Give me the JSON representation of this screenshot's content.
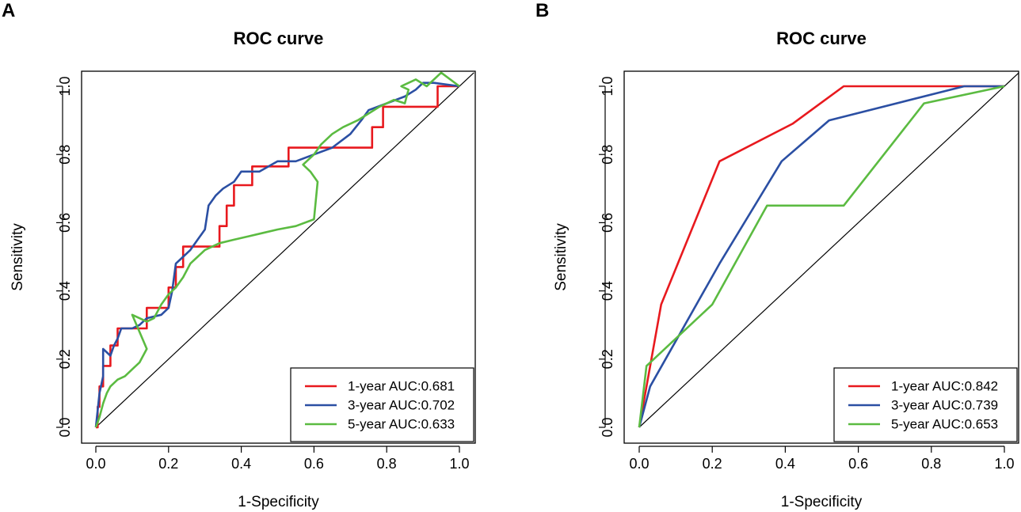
{
  "panels": [
    {
      "letter": "A"
    },
    {
      "letter": "B"
    }
  ],
  "chart_data": [
    {
      "type": "line",
      "title": "ROC curve",
      "xlabel": "1-Specificity",
      "ylabel": "Sensitivity",
      "xlim": [
        0,
        1
      ],
      "ylim": [
        0,
        1
      ],
      "xticks": [
        "0.0",
        "0.2",
        "0.4",
        "0.6",
        "0.8",
        "1.0"
      ],
      "yticks": [
        "0.0",
        "0.2",
        "0.4",
        "0.6",
        "0.8",
        "1.0"
      ],
      "legend_position": "bottom-right",
      "diagonal": true,
      "series": [
        {
          "name": "1-year AUC:0.681",
          "color": "#e8191e",
          "x": [
            0,
            0.005,
            0.005,
            0.01,
            0.01,
            0.02,
            0.02,
            0.04,
            0.04,
            0.06,
            0.06,
            0.08,
            0.08,
            0.14,
            0.14,
            0.18,
            0.18,
            0.2,
            0.2,
            0.22,
            0.22,
            0.24,
            0.24,
            0.34,
            0.34,
            0.36,
            0.36,
            0.38,
            0.38,
            0.43,
            0.43,
            0.53,
            0.53,
            0.76,
            0.76,
            0.79,
            0.79,
            0.94,
            0.94,
            1.0
          ],
          "y": [
            0,
            0,
            0.06,
            0.06,
            0.12,
            0.12,
            0.18,
            0.18,
            0.24,
            0.24,
            0.29,
            0.29,
            0.29,
            0.29,
            0.35,
            0.35,
            0.35,
            0.35,
            0.41,
            0.41,
            0.47,
            0.47,
            0.53,
            0.53,
            0.59,
            0.59,
            0.65,
            0.65,
            0.71,
            0.71,
            0.765,
            0.765,
            0.82,
            0.82,
            0.88,
            0.88,
            0.94,
            0.94,
            1.0,
            1.0
          ]
        },
        {
          "name": "3-year AUC:0.702",
          "color": "#2b4fa3",
          "x": [
            0,
            0.01,
            0.02,
            0.02,
            0.04,
            0.05,
            0.06,
            0.07,
            0.1,
            0.12,
            0.14,
            0.18,
            0.2,
            0.21,
            0.22,
            0.24,
            0.26,
            0.28,
            0.3,
            0.31,
            0.33,
            0.35,
            0.38,
            0.4,
            0.45,
            0.5,
            0.55,
            0.6,
            0.65,
            0.7,
            0.73,
            0.75,
            0.8,
            0.85,
            0.88,
            0.9,
            0.93,
            1.0
          ],
          "y": [
            0,
            0.1,
            0.15,
            0.23,
            0.21,
            0.24,
            0.26,
            0.29,
            0.29,
            0.3,
            0.32,
            0.33,
            0.35,
            0.4,
            0.48,
            0.5,
            0.52,
            0.55,
            0.58,
            0.65,
            0.68,
            0.7,
            0.72,
            0.75,
            0.75,
            0.78,
            0.78,
            0.8,
            0.82,
            0.86,
            0.9,
            0.93,
            0.95,
            0.97,
            0.99,
            1.01,
            1.01,
            1.0
          ]
        },
        {
          "name": "5-year AUC:0.633",
          "color": "#5bbb41",
          "x": [
            0,
            0.01,
            0.02,
            0.03,
            0.04,
            0.06,
            0.08,
            0.1,
            0.12,
            0.14,
            0.1,
            0.12,
            0.14,
            0.16,
            0.18,
            0.2,
            0.22,
            0.24,
            0.26,
            0.28,
            0.3,
            0.34,
            0.38,
            0.42,
            0.46,
            0.5,
            0.55,
            0.6,
            0.61,
            0.59,
            0.57,
            0.6,
            0.62,
            0.65,
            0.68,
            0.72,
            0.75,
            0.78,
            0.82,
            0.85,
            0.86,
            0.84,
            0.88,
            0.91,
            0.95,
            1.0
          ],
          "y": [
            0,
            0.03,
            0.07,
            0.1,
            0.12,
            0.14,
            0.15,
            0.17,
            0.19,
            0.23,
            0.33,
            0.32,
            0.31,
            0.32,
            0.36,
            0.39,
            0.41,
            0.44,
            0.48,
            0.5,
            0.52,
            0.54,
            0.55,
            0.56,
            0.57,
            0.58,
            0.59,
            0.61,
            0.72,
            0.75,
            0.77,
            0.8,
            0.83,
            0.86,
            0.88,
            0.9,
            0.92,
            0.94,
            0.96,
            0.95,
            0.99,
            1.0,
            1.02,
            1.0,
            1.04,
            1.0
          ]
        }
      ]
    },
    {
      "type": "line",
      "title": "ROC curve",
      "xlabel": "1-Specificity",
      "ylabel": "Sensitivity",
      "xlim": [
        0,
        1
      ],
      "ylim": [
        0,
        1
      ],
      "xticks": [
        "0.0",
        "0.2",
        "0.4",
        "0.6",
        "0.8",
        "1.0"
      ],
      "yticks": [
        "0.0",
        "0.2",
        "0.4",
        "0.6",
        "0.8",
        "1.0"
      ],
      "legend_position": "bottom-right",
      "diagonal": true,
      "series": [
        {
          "name": "1-year AUC:0.842",
          "color": "#e8191e",
          "x": [
            0,
            0.06,
            0.22,
            0.42,
            0.56,
            1.0
          ],
          "y": [
            0,
            0.36,
            0.78,
            0.89,
            1.0,
            1.0
          ]
        },
        {
          "name": "3-year AUC:0.739",
          "color": "#2b4fa3",
          "x": [
            0,
            0.03,
            0.22,
            0.39,
            0.52,
            0.89,
            1.0
          ],
          "y": [
            0,
            0.12,
            0.48,
            0.78,
            0.9,
            1.0,
            1.0
          ]
        },
        {
          "name": "5-year AUC:0.653",
          "color": "#5bbb41",
          "x": [
            0,
            0.02,
            0.2,
            0.35,
            0.56,
            0.78,
            1.0
          ],
          "y": [
            0,
            0.18,
            0.36,
            0.65,
            0.65,
            0.95,
            1.0
          ]
        }
      ]
    }
  ]
}
